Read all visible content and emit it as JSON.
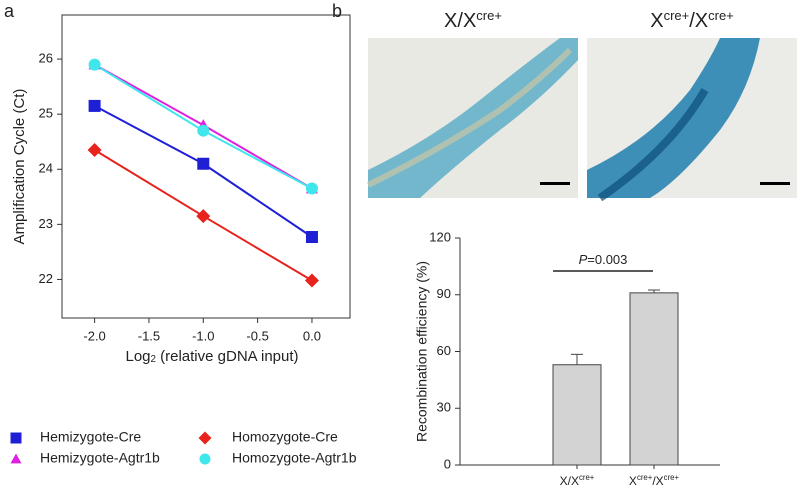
{
  "panels": [
    "a",
    "b"
  ],
  "images": [
    {
      "label_parts": [
        "X/X",
        "cre+"
      ]
    },
    {
      "label_parts": [
        "X",
        "cre+",
        "/X",
        "cre+"
      ]
    }
  ],
  "chart_data": [
    {
      "type": "line",
      "ylabel": "Amplification Cycle (Ct)",
      "xlabel_parts": [
        "Log",
        "2",
        " (relative gDNA input)"
      ],
      "x": [
        -2,
        -1,
        0
      ],
      "xlim": [
        -2.3,
        0.35
      ],
      "xticks": [
        {
          "value": -2,
          "label": "-2.0"
        },
        {
          "value": -1.5,
          "label": "-1.5"
        },
        {
          "value": -1,
          "label": "-1.0"
        },
        {
          "value": -0.5,
          "label": "-0.5"
        },
        {
          "value": 0,
          "label": "0.0"
        }
      ],
      "ylim": [
        21.3,
        26.8
      ],
      "yticks": [
        22,
        23,
        24,
        25,
        26
      ],
      "legend": "bottom",
      "series": [
        {
          "name": "Hemizygote-Cre",
          "color": "#1f1fd6",
          "marker": "square",
          "values": [
            25.15,
            24.1,
            22.77
          ]
        },
        {
          "name": "Homozygote-Cre",
          "color": "#e8221c",
          "marker": "diamond",
          "values": [
            24.35,
            23.15,
            21.98
          ]
        },
        {
          "name": "Hemizygote-Agtr1b",
          "color": "#e020e0",
          "marker": "triangle",
          "values": [
            25.9,
            24.8,
            23.65
          ]
        },
        {
          "name": "Homozygote-Agtr1b",
          "color": "#3fe6ec",
          "marker": "circle",
          "values": [
            25.9,
            24.7,
            23.65
          ]
        }
      ]
    },
    {
      "type": "bar",
      "ylabel": "Recombination efficiency (%)",
      "categories": [
        [
          "X/X",
          "cre+"
        ],
        [
          "X",
          "cre+",
          "/X",
          "cre+"
        ]
      ],
      "values": [
        53,
        91
      ],
      "errors": [
        5.5,
        1.5
      ],
      "color": "#d3d3d3",
      "ylim": [
        0,
        120
      ],
      "yticks": [
        0,
        30,
        60,
        90,
        120
      ],
      "annotation_parts": [
        "P",
        "=0.003"
      ]
    }
  ]
}
